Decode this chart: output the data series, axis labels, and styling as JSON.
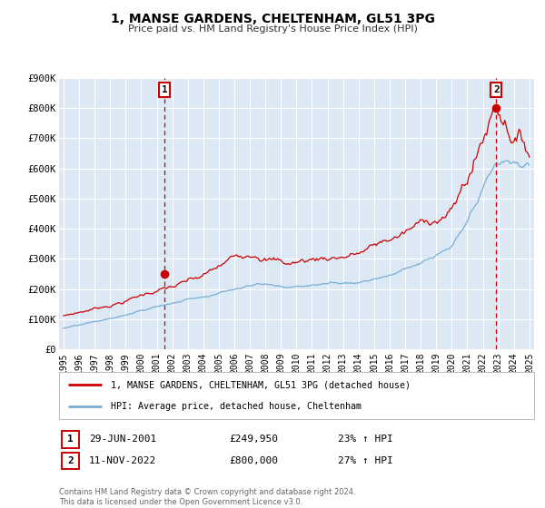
{
  "title": "1, MANSE GARDENS, CHELTENHAM, GL51 3PG",
  "subtitle": "Price paid vs. HM Land Registry's House Price Index (HPI)",
  "background_color": "#ffffff",
  "plot_bg_color": "#dce9f5",
  "grid_color": "#ffffff",
  "red_line_color": "#cc0000",
  "blue_line_color": "#7aadd4",
  "ylim": [
    0,
    900000
  ],
  "yticks": [
    0,
    100000,
    200000,
    300000,
    400000,
    500000,
    600000,
    700000,
    800000,
    900000
  ],
  "ytick_labels": [
    "£0",
    "£100K",
    "£200K",
    "£300K",
    "£400K",
    "£500K",
    "£600K",
    "£700K",
    "£800K",
    "£900K"
  ],
  "xlim_start": 1994.7,
  "xlim_end": 2025.3,
  "xtick_years": [
    1995,
    1996,
    1997,
    1998,
    1999,
    2000,
    2001,
    2002,
    2003,
    2004,
    2005,
    2006,
    2007,
    2008,
    2009,
    2010,
    2011,
    2012,
    2013,
    2014,
    2015,
    2016,
    2017,
    2018,
    2019,
    2020,
    2021,
    2022,
    2023,
    2024,
    2025
  ],
  "sale1_x": 2001.49,
  "sale1_y": 249950,
  "sale1_label": "1",
  "sale1_date": "29-JUN-2001",
  "sale1_price": "£249,950",
  "sale1_hpi": "23% ↑ HPI",
  "sale2_x": 2022.86,
  "sale2_y": 800000,
  "sale2_label": "2",
  "sale2_date": "11-NOV-2022",
  "sale2_price": "£800,000",
  "sale2_hpi": "27% ↑ HPI",
  "legend_label_red": "1, MANSE GARDENS, CHELTENHAM, GL51 3PG (detached house)",
  "legend_label_blue": "HPI: Average price, detached house, Cheltenham",
  "footer_line1": "Contains HM Land Registry data © Crown copyright and database right 2024.",
  "footer_line2": "This data is licensed under the Open Government Licence v3.0."
}
